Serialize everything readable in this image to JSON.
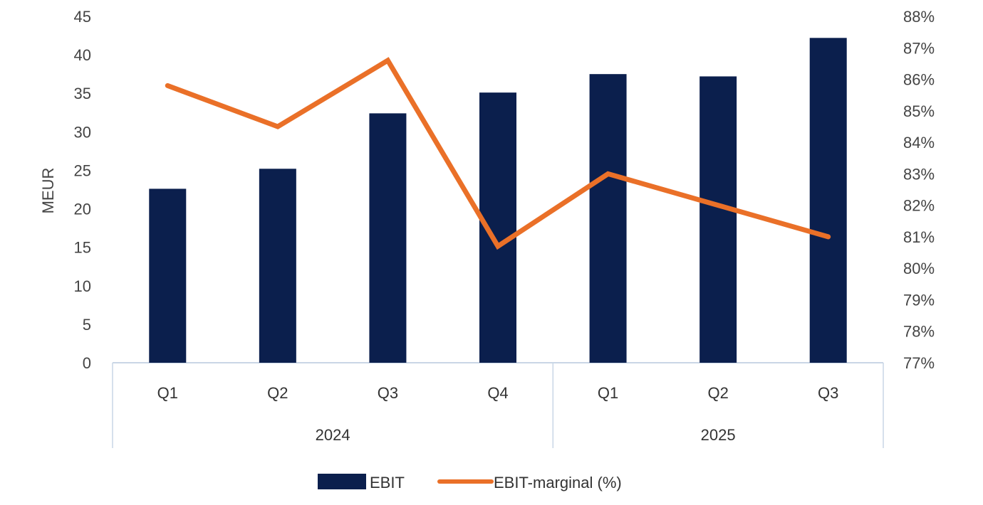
{
  "chart_data": {
    "type": "bar",
    "title": "",
    "ylabel": "MEUR",
    "ylim": [
      0,
      45
    ],
    "y_ticks": [
      "0",
      "5",
      "10",
      "15",
      "20",
      "25",
      "30",
      "35",
      "40",
      "45"
    ],
    "y2lim": [
      77,
      88
    ],
    "y2_ticks": [
      "77%",
      "78%",
      "79%",
      "80%",
      "81%",
      "82%",
      "83%",
      "84%",
      "85%",
      "86%",
      "87%",
      "88%"
    ],
    "categories": [
      "Q1",
      "Q2",
      "Q3",
      "Q4",
      "Q1",
      "Q2",
      "Q3"
    ],
    "groups": [
      {
        "label": "2024",
        "count": 4
      },
      {
        "label": "2025",
        "count": 3
      }
    ],
    "series": [
      {
        "name": "EBIT",
        "type": "bar",
        "axis": "left",
        "color": "#0b1f4d",
        "values": [
          22.6,
          25.2,
          32.4,
          35.1,
          37.5,
          37.2,
          42.2
        ]
      },
      {
        "name": "EBIT-marginal (%)",
        "type": "line",
        "axis": "right",
        "color": "#ea7028",
        "values": [
          85.8,
          84.5,
          86.6,
          80.7,
          83.0,
          82.0,
          81.0
        ]
      }
    ],
    "legend_position": "bottom",
    "grid": false
  }
}
